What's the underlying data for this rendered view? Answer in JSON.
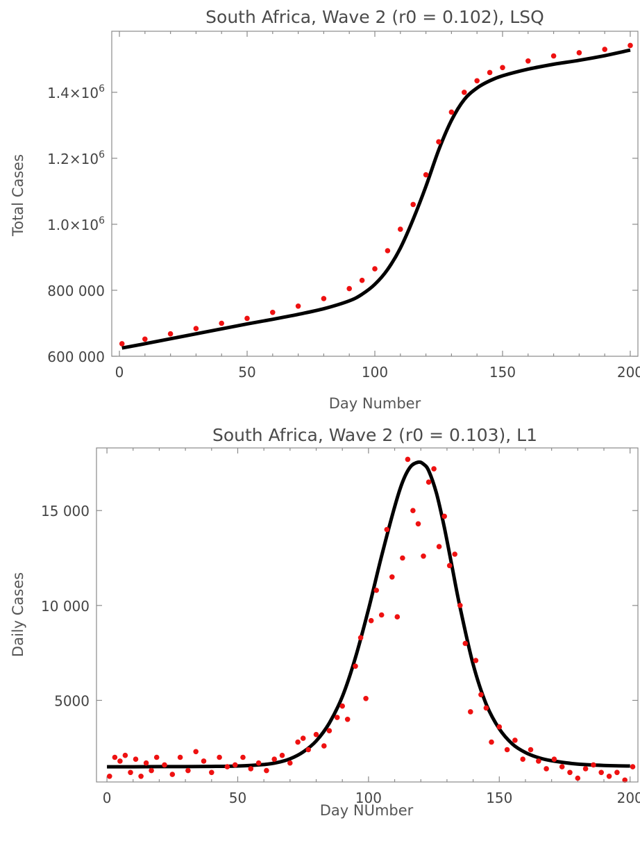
{
  "chart_data": [
    {
      "type": "scatter",
      "title": "South Africa, Wave 2 (r0 = 0.102), LSQ",
      "xlabel": "Day Number",
      "ylabel": "Total Cases",
      "xlim": [
        -3,
        203
      ],
      "ylim": [
        600000,
        1585000
      ],
      "x_ticks": [
        0,
        50,
        100,
        150,
        200
      ],
      "x_tick_labels": [
        "0",
        "50",
        "100",
        "150",
        "200"
      ],
      "y_ticks": [
        600000,
        800000,
        1000000,
        1200000,
        1400000
      ],
      "y_tick_labels": [
        {
          "text": "600 000"
        },
        {
          "text": "800 000"
        },
        {
          "text": "1.0×10",
          "sup": "6"
        },
        {
          "text": "1.2×10",
          "sup": "6"
        },
        {
          "text": "1.4×10",
          "sup": "6"
        }
      ],
      "grid": false,
      "colors": {
        "points": "#ee1111",
        "fit": "#000000"
      },
      "series": [
        {
          "kind": "points",
          "x": [
            1,
            10,
            20,
            30,
            40,
            50,
            60,
            70,
            80,
            90,
            95,
            100,
            105,
            110,
            115,
            120,
            125,
            130,
            135,
            140,
            145,
            150,
            160,
            170,
            180,
            190,
            200
          ],
          "y": [
            638000,
            652000,
            668000,
            684000,
            700000,
            715000,
            733000,
            752000,
            775000,
            805000,
            830000,
            865000,
            920000,
            985000,
            1060000,
            1150000,
            1250000,
            1340000,
            1400000,
            1435000,
            1460000,
            1475000,
            1495000,
            1510000,
            1520000,
            1530000,
            1542000
          ]
        },
        {
          "kind": "line",
          "x": [
            1,
            10,
            20,
            30,
            40,
            50,
            60,
            70,
            80,
            90,
            95,
            100,
            105,
            110,
            115,
            120,
            125,
            130,
            135,
            140,
            145,
            150,
            160,
            170,
            180,
            190,
            200
          ],
          "y": [
            625000,
            638000,
            653000,
            668000,
            683000,
            698000,
            712000,
            727000,
            744000,
            768000,
            788000,
            818000,
            863000,
            928000,
            1015000,
            1115000,
            1225000,
            1315000,
            1378000,
            1413000,
            1435000,
            1450000,
            1470000,
            1485000,
            1497000,
            1511000,
            1528000
          ]
        }
      ]
    },
    {
      "type": "scatter",
      "title": "South Africa, Wave 2 (r0 = 0.103), L1",
      "xlabel": "Day NUmber",
      "ylabel": "Daily Cases",
      "xlim": [
        -4,
        203
      ],
      "ylim": [
        700,
        18300
      ],
      "x_ticks": [
        0,
        50,
        100,
        150,
        200
      ],
      "x_tick_labels": [
        "0",
        "50",
        "100",
        "150",
        "200"
      ],
      "y_ticks": [
        5000,
        10000,
        15000
      ],
      "y_tick_labels": [
        {
          "text": "5000"
        },
        {
          "text": "10 000"
        },
        {
          "text": "15 000"
        }
      ],
      "grid": false,
      "colors": {
        "points": "#ee1111",
        "fit": "#000000"
      },
      "series": [
        {
          "kind": "points",
          "x": [
            1,
            3,
            5,
            7,
            9,
            11,
            13,
            15,
            17,
            19,
            22,
            25,
            28,
            31,
            34,
            37,
            40,
            43,
            46,
            49,
            52,
            55,
            58,
            61,
            64,
            67,
            70,
            73,
            75,
            77,
            80,
            83,
            85,
            88,
            90,
            92,
            95,
            97,
            99,
            101,
            103,
            105,
            107,
            109,
            111,
            113,
            115,
            117,
            119,
            121,
            123,
            125,
            127,
            129,
            131,
            133,
            135,
            137,
            139,
            141,
            143,
            145,
            147,
            150,
            153,
            156,
            159,
            162,
            165,
            168,
            171,
            174,
            177,
            180,
            183,
            186,
            189,
            192,
            195,
            198,
            201
          ],
          "y": [
            1000,
            2000,
            1800,
            2100,
            1200,
            1900,
            1000,
            1700,
            1300,
            2000,
            1600,
            1100,
            2000,
            1300,
            2300,
            1800,
            1200,
            2000,
            1500,
            1600,
            2000,
            1400,
            1700,
            1300,
            1900,
            2100,
            1700,
            2800,
            3000,
            2400,
            3200,
            2600,
            3400,
            4100,
            4700,
            4000,
            6800,
            8300,
            5100,
            9200,
            10800,
            9500,
            14000,
            11500,
            9400,
            12500,
            17700,
            15000,
            14300,
            12600,
            16500,
            17200,
            13100,
            14700,
            12100,
            12700,
            10000,
            8000,
            4400,
            7100,
            5300,
            4600,
            2800,
            3600,
            2400,
            2900,
            1900,
            2400,
            1800,
            1400,
            1900,
            1500,
            1200,
            900,
            1400,
            1600,
            1200,
            1000,
            1200,
            800,
            1500
          ]
        },
        {
          "kind": "line",
          "x": [
            0,
            10,
            20,
            30,
            40,
            50,
            60,
            65,
            70,
            75,
            80,
            85,
            90,
            95,
            100,
            105,
            110,
            113,
            116,
            119,
            121,
            123,
            126,
            129,
            132,
            135,
            140,
            145,
            150,
            155,
            160,
            165,
            170,
            180,
            190,
            200
          ],
          "y": [
            1500,
            1500,
            1510,
            1510,
            1520,
            1540,
            1620,
            1720,
            1920,
            2280,
            2860,
            3800,
            5200,
            7250,
            9800,
            12600,
            15200,
            16500,
            17300,
            17550,
            17450,
            17100,
            15900,
            14100,
            12000,
            9900,
            6900,
            4800,
            3500,
            2700,
            2250,
            1980,
            1820,
            1640,
            1570,
            1540
          ]
        }
      ]
    }
  ]
}
